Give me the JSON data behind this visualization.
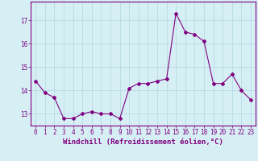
{
  "x": [
    0,
    1,
    2,
    3,
    4,
    5,
    6,
    7,
    8,
    9,
    10,
    11,
    12,
    13,
    14,
    15,
    16,
    17,
    18,
    19,
    20,
    21,
    22,
    23
  ],
  "y": [
    14.4,
    13.9,
    13.7,
    12.8,
    12.8,
    13.0,
    13.1,
    13.0,
    13.0,
    12.8,
    14.1,
    14.3,
    14.3,
    14.4,
    14.5,
    17.3,
    16.5,
    16.4,
    16.1,
    14.3,
    14.3,
    14.7,
    14.0,
    13.6
  ],
  "line_color": "#800080",
  "marker": "D",
  "marker_size": 2.0,
  "bg_color": "#d6eff5",
  "grid_color": "#b0d8e0",
  "xlabel": "Windchill (Refroidissement éolien,°C)",
  "xlabel_fontsize": 6.5,
  "tick_fontsize": 5.5,
  "ylim": [
    12.5,
    17.8
  ],
  "yticks": [
    13,
    14,
    15,
    16,
    17
  ],
  "xlim": [
    -0.5,
    23.5
  ],
  "spine_color": "#800080"
}
